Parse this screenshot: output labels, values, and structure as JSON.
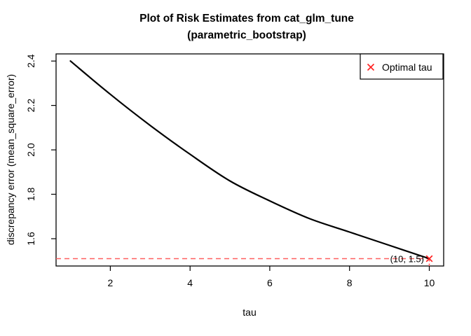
{
  "chart_data": {
    "type": "line",
    "title_line1": "Plot of Risk Estimates from cat_glm_tune",
    "title_line2": "(parametric_bootstrap)",
    "xlabel": "tau",
    "ylabel": "discrepancy error (mean_square_error)",
    "x": [
      1,
      2,
      3,
      4,
      5,
      6,
      7,
      8,
      9,
      10
    ],
    "y": [
      2.4,
      2.25,
      2.11,
      1.98,
      1.86,
      1.77,
      1.69,
      1.63,
      1.57,
      1.51
    ],
    "xlim": [
      0.64,
      10.36
    ],
    "ylim": [
      1.477,
      2.432
    ],
    "x_ticks": [
      {
        "value": 2,
        "label": "2"
      },
      {
        "value": 4,
        "label": "4"
      },
      {
        "value": 6,
        "label": "6"
      },
      {
        "value": 8,
        "label": "8"
      },
      {
        "value": 10,
        "label": "10"
      }
    ],
    "y_ticks": [
      {
        "value": 1.6,
        "label": "1.6"
      },
      {
        "value": 1.8,
        "label": "1.8"
      },
      {
        "value": 2.0,
        "label": "2.0"
      },
      {
        "value": 2.2,
        "label": "2.2"
      },
      {
        "value": 2.4,
        "label": "2.4"
      }
    ],
    "grid": false,
    "optimal": {
      "tau": 10,
      "value": 1.51,
      "annotation": "(10, 1.5)"
    },
    "legend": {
      "position": "topright",
      "entries": [
        {
          "symbol": "x-cross",
          "label": "Optimal tau"
        }
      ]
    },
    "colors": {
      "curve": "#000000",
      "optimal_line": "#ff6060",
      "optimal_marker": "#ff2020",
      "axis": "#000000"
    }
  }
}
